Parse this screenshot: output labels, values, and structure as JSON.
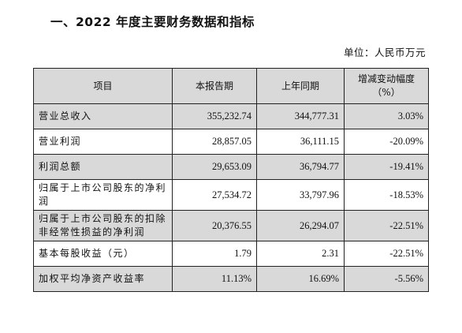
{
  "section_title": "一、2022 年度主要财务数据和指标",
  "unit": "单位：人民币万元",
  "table": {
    "headers": [
      "项目",
      "本报告期",
      "上年同期",
      "增减变动幅度（%）"
    ],
    "rows": [
      {
        "item": "营业总收入",
        "current": "355,232.74",
        "prior": "344,777.31",
        "change": "3.03%"
      },
      {
        "item": "营业利润",
        "current": "28,857.05",
        "prior": "36,111.15",
        "change": "-20.09%"
      },
      {
        "item": "利润总额",
        "current": "29,653.09",
        "prior": "36,794.77",
        "change": "-19.41%"
      },
      {
        "item": "归属于上市公司股东的净利润",
        "current": "27,534.72",
        "prior": "33,797.96",
        "change": "-18.53%"
      },
      {
        "item": "归属于上市公司股东的扣除非经常性损益的净利润",
        "current": "20,376.55",
        "prior": "26,294.07",
        "change": "-22.51%"
      },
      {
        "item": "基本每股收益（元）",
        "current": "1.79",
        "prior": "2.31",
        "change": "-22.51%"
      },
      {
        "item": "加权平均净资产收益率",
        "current": "11.13%",
        "prior": "16.69%",
        "change": "-5.56%"
      }
    ]
  }
}
